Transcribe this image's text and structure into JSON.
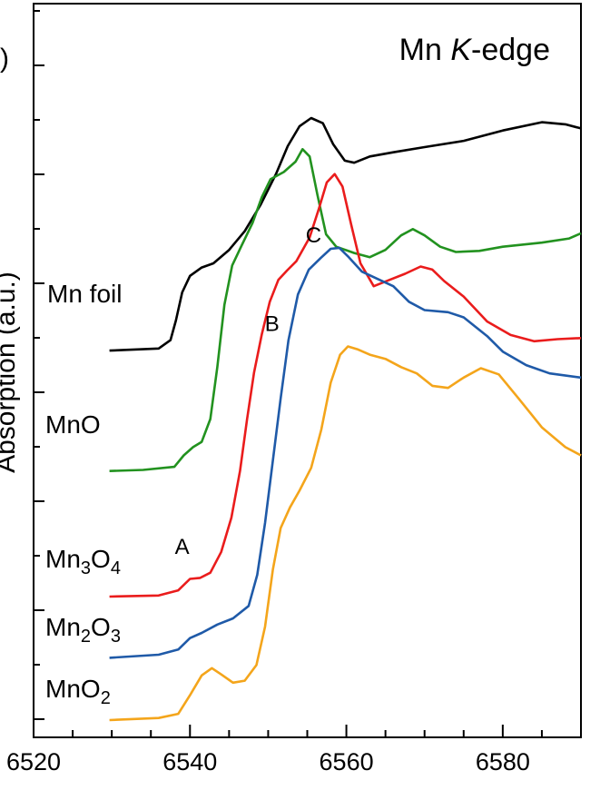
{
  "panel_label": ")",
  "chart_data": {
    "type": "line",
    "title": "Mn K-edge",
    "title_parts": [
      "Mn ",
      "K",
      "-edge"
    ],
    "xlabel": "",
    "ylabel": "Absorption (a.u.)",
    "xlim": [
      6520,
      6590
    ],
    "ylim": [
      0,
      7
    ],
    "x_ticks": [
      6520,
      6540,
      6560,
      6580
    ],
    "grid": false,
    "legend": "none",
    "series": [
      {
        "name": "Mn foil",
        "label_parts": [
          [
            "Mn foil",
            ""
          ]
        ],
        "color": "#000000",
        "points": [
          [
            6529.7,
            3.56
          ],
          [
            6536,
            3.58
          ],
          [
            6537.5,
            3.66
          ],
          [
            6538.2,
            3.85
          ],
          [
            6539,
            4.12
          ],
          [
            6540,
            4.28
          ],
          [
            6541.5,
            4.36
          ],
          [
            6543,
            4.4
          ],
          [
            6545,
            4.53
          ],
          [
            6547,
            4.71
          ],
          [
            6549,
            4.96
          ],
          [
            6551,
            5.26
          ],
          [
            6552.5,
            5.53
          ],
          [
            6554,
            5.72
          ],
          [
            6555.5,
            5.8
          ],
          [
            6557,
            5.75
          ],
          [
            6558.3,
            5.55
          ],
          [
            6559.8,
            5.39
          ],
          [
            6561,
            5.37
          ],
          [
            6563,
            5.43
          ],
          [
            6566,
            5.47
          ],
          [
            6570,
            5.52
          ],
          [
            6575,
            5.58
          ],
          [
            6580,
            5.68
          ],
          [
            6585,
            5.76
          ],
          [
            6588,
            5.74
          ],
          [
            6590,
            5.7
          ]
        ]
      },
      {
        "name": "MnO",
        "label_parts": [
          [
            "MnO",
            ""
          ]
        ],
        "color": "#22921f",
        "points": [
          [
            6529.7,
            2.4
          ],
          [
            6534,
            2.41
          ],
          [
            6538,
            2.44
          ],
          [
            6539.2,
            2.55
          ],
          [
            6540.4,
            2.63
          ],
          [
            6541.5,
            2.68
          ],
          [
            6542.6,
            2.9
          ],
          [
            6543.5,
            3.4
          ],
          [
            6544.4,
            4.0
          ],
          [
            6545.4,
            4.38
          ],
          [
            6546.6,
            4.57
          ],
          [
            6548,
            4.79
          ],
          [
            6549.2,
            5.04
          ],
          [
            6550.3,
            5.21
          ],
          [
            6552,
            5.28
          ],
          [
            6553.5,
            5.38
          ],
          [
            6554.4,
            5.5
          ],
          [
            6555.3,
            5.43
          ],
          [
            6556.3,
            5.06
          ],
          [
            6557.4,
            4.68
          ],
          [
            6558.7,
            4.56
          ],
          [
            6561,
            4.5
          ],
          [
            6563,
            4.46
          ],
          [
            6565,
            4.53
          ],
          [
            6567,
            4.67
          ],
          [
            6568.5,
            4.73
          ],
          [
            6570,
            4.67
          ],
          [
            6572,
            4.56
          ],
          [
            6574,
            4.51
          ],
          [
            6577,
            4.52
          ],
          [
            6580,
            4.56
          ],
          [
            6585,
            4.6
          ],
          [
            6588.5,
            4.64
          ],
          [
            6590,
            4.69
          ]
        ]
      },
      {
        "name": "Mn3O4",
        "label_parts": [
          [
            "Mn",
            ""
          ],
          [
            "3",
            "sub"
          ],
          [
            "O",
            ""
          ],
          [
            "4",
            "sub"
          ]
        ],
        "color": "#ea1c1c",
        "points": [
          [
            6529.7,
            1.19
          ],
          [
            6536,
            1.2
          ],
          [
            6538.5,
            1.25
          ],
          [
            6540,
            1.36
          ],
          [
            6541.3,
            1.37
          ],
          [
            6542.6,
            1.42
          ],
          [
            6544,
            1.62
          ],
          [
            6545.3,
            1.95
          ],
          [
            6546.4,
            2.4
          ],
          [
            6547.3,
            2.9
          ],
          [
            6548.2,
            3.35
          ],
          [
            6549.2,
            3.72
          ],
          [
            6550.2,
            4.03
          ],
          [
            6551.3,
            4.24
          ],
          [
            6552.4,
            4.33
          ],
          [
            6553.6,
            4.42
          ],
          [
            6555.3,
            4.65
          ],
          [
            6556.5,
            4.93
          ],
          [
            6557.5,
            5.18
          ],
          [
            6558.5,
            5.26
          ],
          [
            6559.5,
            5.14
          ],
          [
            6560.6,
            4.78
          ],
          [
            6561.8,
            4.4
          ],
          [
            6563.5,
            4.18
          ],
          [
            6565.5,
            4.24
          ],
          [
            6567.5,
            4.3
          ],
          [
            6569.5,
            4.37
          ],
          [
            6571,
            4.34
          ],
          [
            6572.5,
            4.23
          ],
          [
            6575,
            4.08
          ],
          [
            6578,
            3.84
          ],
          [
            6581,
            3.71
          ],
          [
            6584,
            3.65
          ],
          [
            6587,
            3.67
          ],
          [
            6590,
            3.68
          ]
        ]
      },
      {
        "name": "Mn2O3",
        "label_parts": [
          [
            "Mn",
            ""
          ],
          [
            "2",
            "sub"
          ],
          [
            "O",
            ""
          ],
          [
            "3",
            "sub"
          ]
        ],
        "color": "#1f5aa8",
        "points": [
          [
            6529.7,
            0.6
          ],
          [
            6536,
            0.63
          ],
          [
            6538.5,
            0.68
          ],
          [
            6540,
            0.79
          ],
          [
            6541.5,
            0.84
          ],
          [
            6543.5,
            0.92
          ],
          [
            6545.5,
            0.98
          ],
          [
            6547.5,
            1.1
          ],
          [
            6548.6,
            1.4
          ],
          [
            6549.6,
            1.9
          ],
          [
            6550.6,
            2.5
          ],
          [
            6551.6,
            3.1
          ],
          [
            6552.6,
            3.66
          ],
          [
            6553.8,
            4.1
          ],
          [
            6555.2,
            4.34
          ],
          [
            6556.7,
            4.45
          ],
          [
            6558,
            4.54
          ],
          [
            6559.1,
            4.55
          ],
          [
            6560.3,
            4.46
          ],
          [
            6562,
            4.32
          ],
          [
            6564,
            4.25
          ],
          [
            6566,
            4.18
          ],
          [
            6568,
            4.03
          ],
          [
            6570,
            3.95
          ],
          [
            6573,
            3.93
          ],
          [
            6575,
            3.88
          ],
          [
            6578,
            3.7
          ],
          [
            6580,
            3.55
          ],
          [
            6583,
            3.42
          ],
          [
            6586,
            3.34
          ],
          [
            6590,
            3.3
          ]
        ]
      },
      {
        "name": "MnO2",
        "label_parts": [
          [
            "MnO",
            ""
          ],
          [
            "2",
            "sub"
          ]
        ],
        "color": "#f4a51b",
        "points": [
          [
            6529.7,
            0.0
          ],
          [
            6536,
            0.02
          ],
          [
            6538.5,
            0.06
          ],
          [
            6540,
            0.24
          ],
          [
            6541.5,
            0.43
          ],
          [
            6542.8,
            0.5
          ],
          [
            6544,
            0.44
          ],
          [
            6545.5,
            0.36
          ],
          [
            6547,
            0.38
          ],
          [
            6548.5,
            0.53
          ],
          [
            6549.6,
            0.9
          ],
          [
            6550.6,
            1.45
          ],
          [
            6551.6,
            1.85
          ],
          [
            6552.8,
            2.05
          ],
          [
            6554,
            2.21
          ],
          [
            6555.5,
            2.43
          ],
          [
            6556.8,
            2.8
          ],
          [
            6558,
            3.25
          ],
          [
            6559.2,
            3.52
          ],
          [
            6560.2,
            3.6
          ],
          [
            6561.5,
            3.57
          ],
          [
            6563,
            3.52
          ],
          [
            6565,
            3.48
          ],
          [
            6567,
            3.4
          ],
          [
            6569,
            3.34
          ],
          [
            6571,
            3.22
          ],
          [
            6573,
            3.2
          ],
          [
            6575,
            3.3
          ],
          [
            6577.2,
            3.39
          ],
          [
            6579.5,
            3.33
          ],
          [
            6582,
            3.1
          ],
          [
            6585,
            2.82
          ],
          [
            6588,
            2.63
          ],
          [
            6590,
            2.55
          ]
        ]
      }
    ],
    "annotations": [
      {
        "text": "A",
        "x": 6539.0,
        "y": 1.6
      },
      {
        "text": "B",
        "x": 6550.5,
        "y": 3.75
      },
      {
        "text": "C",
        "x": 6555.8,
        "y": 4.6
      }
    ]
  }
}
